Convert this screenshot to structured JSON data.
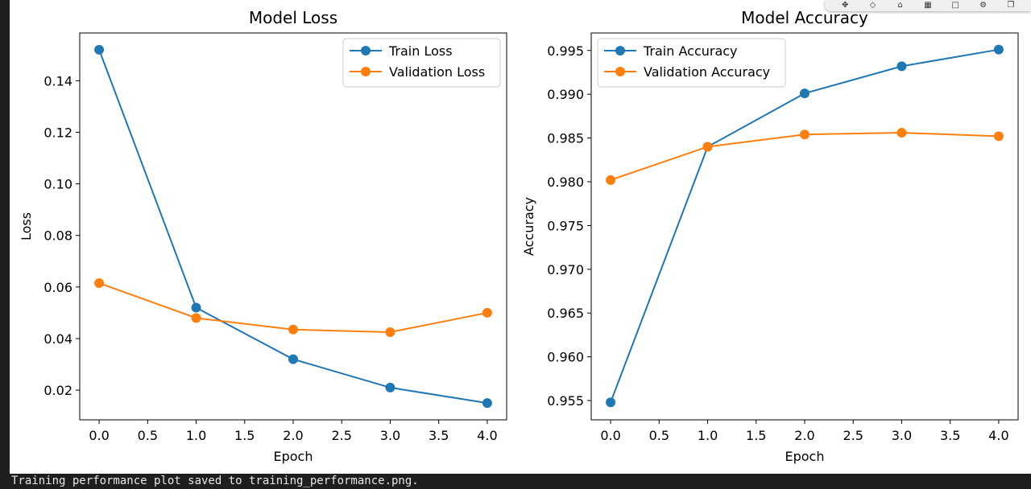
{
  "toolbar": {
    "icons": [
      "pan-icon",
      "zoom-icon",
      "home-icon",
      "save-icon",
      "comment-icon",
      "settings-icon",
      "copy-icon"
    ]
  },
  "output": {
    "text": "Training performance plot saved to training_performance.png."
  },
  "chart_data": [
    {
      "type": "line",
      "title": "Model Loss",
      "xlabel": "Epoch",
      "ylabel": "Loss",
      "x": [
        0,
        1,
        2,
        3,
        4
      ],
      "xlim": [
        -0.2,
        4.2
      ],
      "ylim": [
        0.0085,
        0.1585
      ],
      "xticks": [
        0.0,
        0.5,
        1.0,
        1.5,
        2.0,
        2.5,
        3.0,
        3.5,
        4.0
      ],
      "xtick_labels": [
        "0.0",
        "0.5",
        "1.0",
        "1.5",
        "2.0",
        "2.5",
        "3.0",
        "3.5",
        "4.0"
      ],
      "yticks": [
        0.02,
        0.04,
        0.06,
        0.08,
        0.1,
        0.12,
        0.14
      ],
      "ytick_labels": [
        "0.02",
        "0.04",
        "0.06",
        "0.08",
        "0.10",
        "0.12",
        "0.14"
      ],
      "series": [
        {
          "name": "Train Loss",
          "color": "#1f77b4",
          "values": [
            0.152,
            0.052,
            0.032,
            0.021,
            0.015
          ]
        },
        {
          "name": "Validation Loss",
          "color": "#ff7f0e",
          "values": [
            0.0615,
            0.048,
            0.0435,
            0.0425,
            0.05
          ]
        }
      ],
      "legend": "upper-right",
      "grid": false
    },
    {
      "type": "line",
      "title": "Model Accuracy",
      "xlabel": "Epoch",
      "ylabel": "Accuracy",
      "x": [
        0,
        1,
        2,
        3,
        4
      ],
      "xlim": [
        -0.2,
        4.2
      ],
      "ylim": [
        0.9528,
        0.997
      ],
      "xticks": [
        0.0,
        0.5,
        1.0,
        1.5,
        2.0,
        2.5,
        3.0,
        3.5,
        4.0
      ],
      "xtick_labels": [
        "0.0",
        "0.5",
        "1.0",
        "1.5",
        "2.0",
        "2.5",
        "3.0",
        "3.5",
        "4.0"
      ],
      "yticks": [
        0.955,
        0.96,
        0.965,
        0.97,
        0.975,
        0.98,
        0.985,
        0.99,
        0.995
      ],
      "ytick_labels": [
        "0.955",
        "0.960",
        "0.965",
        "0.970",
        "0.975",
        "0.980",
        "0.985",
        "0.990",
        "0.995"
      ],
      "series": [
        {
          "name": "Train Accuracy",
          "color": "#1f77b4",
          "values": [
            0.9548,
            0.984,
            0.9901,
            0.9932,
            0.9951
          ]
        },
        {
          "name": "Validation Accuracy",
          "color": "#ff7f0e",
          "values": [
            0.9802,
            0.984,
            0.9854,
            0.9856,
            0.9852
          ]
        }
      ],
      "legend": "upper-left",
      "grid": false
    }
  ]
}
